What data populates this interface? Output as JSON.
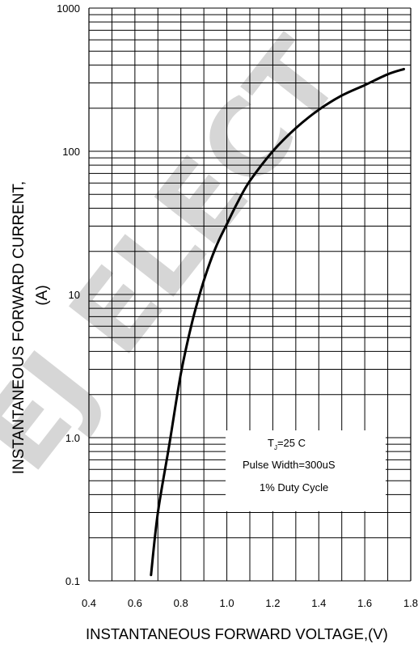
{
  "chart_data": {
    "type": "line",
    "title": "",
    "xlabel": "INSTANTANEOUS FORWARD VOLTAGE,(V)",
    "ylabel_line1": "INSTANTANEOUS FORWARD CURRENT,",
    "ylabel_line2": "(A)",
    "xlim": [
      0.4,
      1.8
    ],
    "ylim": [
      0.1,
      1000
    ],
    "yscale": "log",
    "grid": true,
    "x_ticks": [
      "0.4",
      "0.6",
      "0.8",
      "1.0",
      "1.2",
      "1.4",
      "1.6",
      "1.8"
    ],
    "y_ticks": [
      "0.1",
      "1.0",
      "10",
      "100",
      "1000"
    ],
    "series": [
      {
        "x": [
          0.67,
          0.7,
          0.75,
          0.8,
          0.85,
          0.9,
          0.95,
          1.0,
          1.05,
          1.1,
          1.2,
          1.3,
          1.4,
          1.5,
          1.6,
          1.7,
          1.77
        ],
        "y": [
          0.11,
          0.3,
          0.9,
          2.8,
          6.5,
          12.5,
          21,
          31,
          45,
          62,
          100,
          145,
          195,
          245,
          290,
          345,
          375
        ]
      }
    ],
    "annotation": {
      "line1_prefix": "T",
      "line1_sub": "J",
      "line1_rest": "=25  C",
      "line2": "Pulse Width=300uS",
      "line3": "1% Duty Cycle"
    },
    "watermark": "EJ ELECT"
  }
}
